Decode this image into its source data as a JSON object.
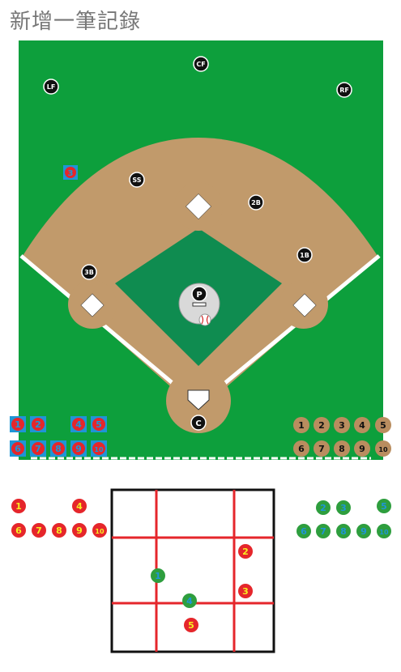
{
  "title": "新增一筆記錄",
  "colors": {
    "grass": "#0d9f3c",
    "infield_grass": "#0f8c50",
    "dirt": "#c19a6b",
    "line": "#ffffff",
    "blue": "#1f95d6",
    "red": "#e5262b",
    "yellow": "#f7ee22",
    "green": "#2e9e3e",
    "brown": "#b98d5f",
    "zone_line": "#e5262b"
  },
  "positions": [
    {
      "id": "cf",
      "label": "CF"
    },
    {
      "id": "lf",
      "label": "LF"
    },
    {
      "id": "rf",
      "label": "RF"
    },
    {
      "id": "ss",
      "label": "SS"
    },
    {
      "id": "2b",
      "label": "2B"
    },
    {
      "id": "1b",
      "label": "1B"
    },
    {
      "id": "3b",
      "label": "3B"
    },
    {
      "id": "p",
      "label": "P"
    },
    {
      "id": "c",
      "label": "C"
    }
  ],
  "field_marker": {
    "label": "3"
  },
  "blue_red_chips": [
    "1",
    "2",
    "4",
    "5",
    "6",
    "7",
    "8",
    "9",
    "10"
  ],
  "brown_chips": [
    "1",
    "2",
    "3",
    "4",
    "5",
    "6",
    "7",
    "8",
    "9",
    "10"
  ],
  "red_yellow_chips": [
    "1",
    "4",
    "6",
    "7",
    "8",
    "9",
    "10"
  ],
  "green_blue_chips": [
    "2",
    "3",
    "5",
    "6",
    "7",
    "8",
    "9",
    "10"
  ],
  "zone_pitches": [
    {
      "label": "1",
      "kind": "green"
    },
    {
      "label": "2",
      "kind": "red"
    },
    {
      "label": "3",
      "kind": "red"
    },
    {
      "label": "4",
      "kind": "green"
    },
    {
      "label": "5",
      "kind": "red"
    }
  ]
}
